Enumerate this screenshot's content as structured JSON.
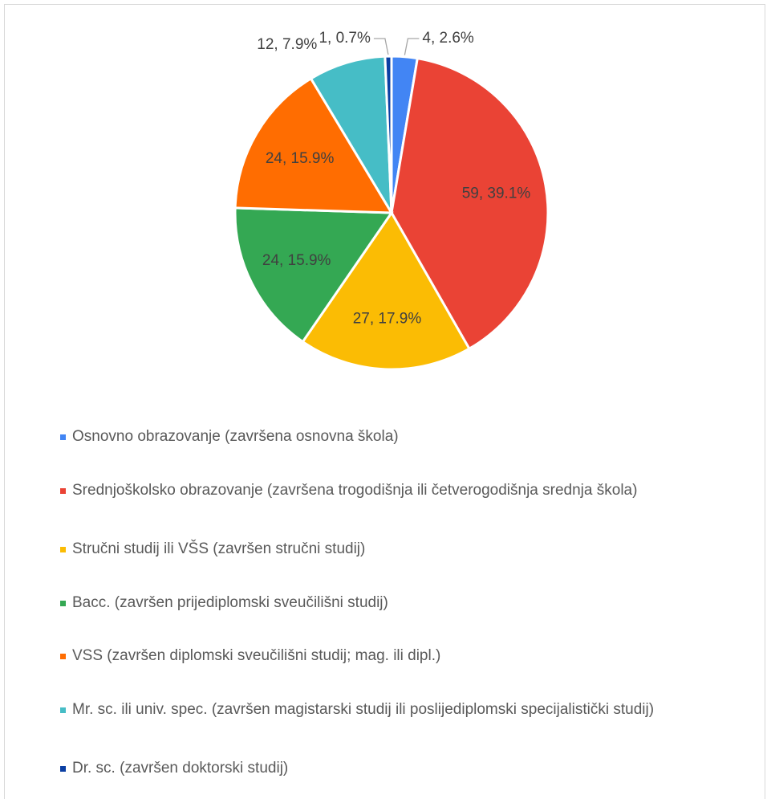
{
  "chart_data": {
    "type": "pie",
    "categories": [
      "Osnovno obrazovanje (završena osnovna škola)",
      "Srednjoškolsko obrazovanje (završena trogodišnja ili četverogodišnja srednja škola)",
      "Stručni studij ili VŠS (završen stručni studij)",
      "Bacc. (završen prijediplomski sveučilišni studij)",
      "VSS (završen diplomski sveučilišni studij; mag. ili dipl.)",
      "Mr. sc. ili univ. spec. (završen magistarski studij ili poslijediplomski specijalistički studij)",
      "Dr. sc. (završen doktorski studij)"
    ],
    "values": [
      4,
      59,
      27,
      24,
      24,
      12,
      1
    ],
    "value_labels": [
      "4, 2.6%",
      "59, 39.1%",
      "27, 17.9%",
      "24, 15.9%",
      "24, 15.9%",
      "12, 7.9%",
      "1, 0.7%"
    ],
    "colors": [
      "#4285f4",
      "#ea4335",
      "#fbbc04",
      "#34a853",
      "#ff6d01",
      "#46bdc6",
      "#0b3fa3"
    ],
    "legend": "bottom"
  }
}
